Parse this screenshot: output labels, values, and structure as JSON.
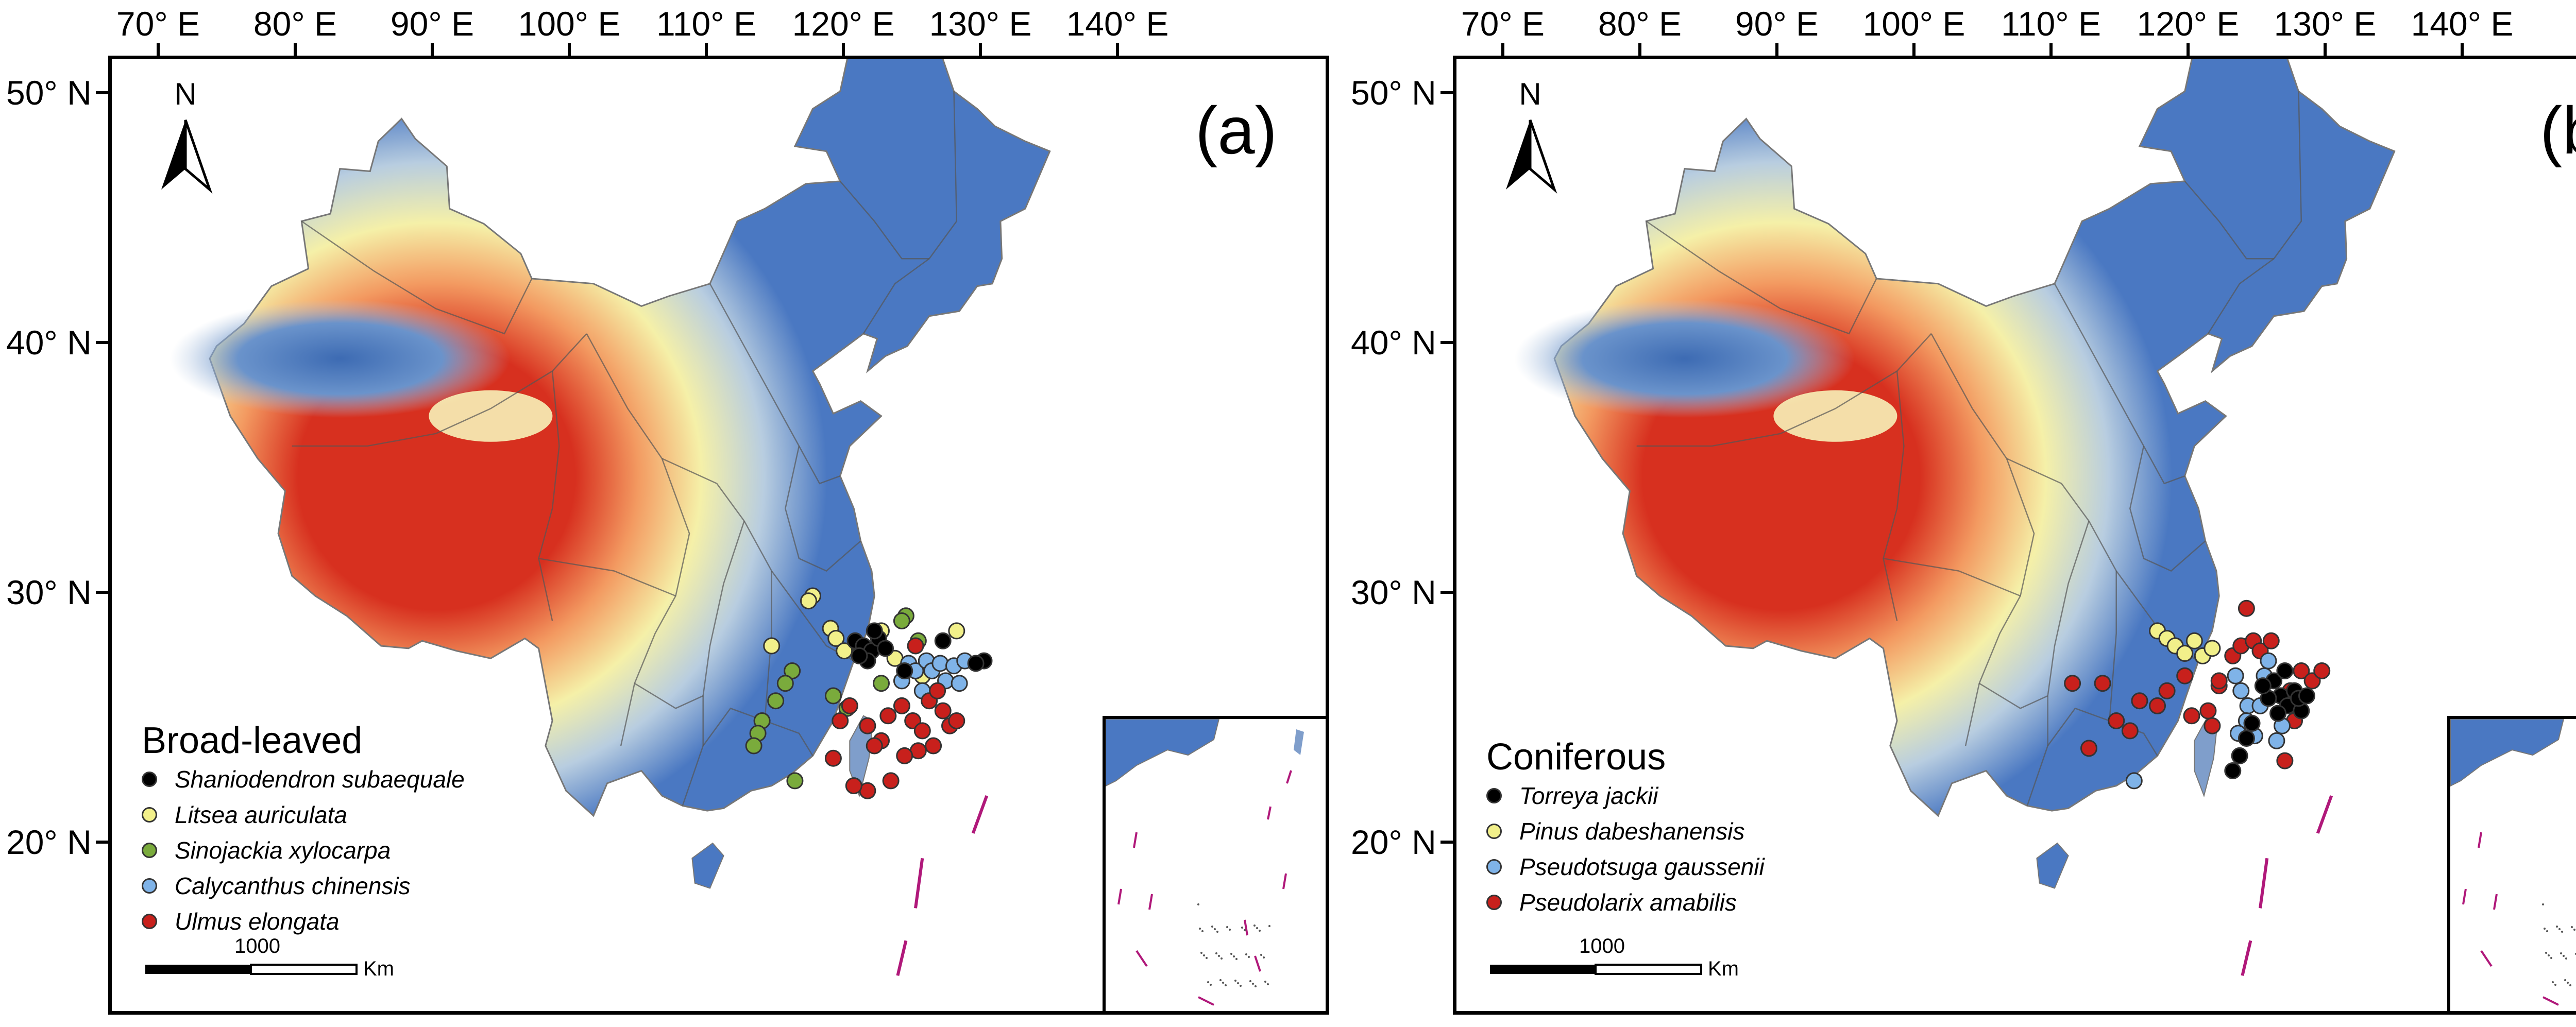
{
  "colors": {
    "low": "#4a78c2",
    "mid": "#f5f0a8",
    "high": "#d7301f",
    "border": "#555555",
    "dash": "#b0187a",
    "black": "#000000",
    "yellow": "#f2f08a",
    "green": "#7aab3c",
    "blue": "#7fb3e8",
    "red": "#c8201c"
  },
  "axes": {
    "lon_labels": [
      "70° E",
      "80° E",
      "90° E",
      "100° E",
      "110° E",
      "120° E",
      "130° E",
      "140° E"
    ],
    "lon_values": [
      70,
      80,
      90,
      100,
      110,
      120,
      130,
      140
    ],
    "lat_labels": [
      "50° N",
      "40° N",
      "30° N",
      "20° N"
    ],
    "lat_values": [
      50,
      40,
      30,
      20
    ]
  },
  "panels": [
    {
      "id": "a",
      "label": "(a)",
      "north": "N",
      "scale_number": "1000",
      "scale_unit": "Km",
      "legend_title": "Broad-leaved",
      "legend": [
        {
          "name": "Shaniodendron subaequale",
          "color": "#000000"
        },
        {
          "name": "Litsea auriculata",
          "color": "#f2f08a"
        },
        {
          "name": "Sinojackia xylocarpa",
          "color": "#7aab3c"
        },
        {
          "name": "Calycanthus chinensis",
          "color": "#7fb3e8"
        },
        {
          "name": "Ulmus elongata",
          "color": "#c8201c"
        }
      ],
      "points": [
        {
          "s": 1,
          "lon": 117.5,
          "lat": 30.0
        },
        {
          "s": 1,
          "lon": 117.2,
          "lat": 29.8
        },
        {
          "s": 1,
          "lon": 114.5,
          "lat": 28.0
        },
        {
          "s": 1,
          "lon": 118.8,
          "lat": 28.7
        },
        {
          "s": 1,
          "lon": 119.2,
          "lat": 28.3
        },
        {
          "s": 1,
          "lon": 119.8,
          "lat": 27.8
        },
        {
          "s": 1,
          "lon": 122.5,
          "lat": 28.6
        },
        {
          "s": 1,
          "lon": 121.0,
          "lat": 27.9
        },
        {
          "s": 1,
          "lon": 123.5,
          "lat": 27.5
        },
        {
          "s": 1,
          "lon": 125.5,
          "lat": 26.8
        },
        {
          "s": 1,
          "lon": 128.0,
          "lat": 28.6
        },
        {
          "s": 2,
          "lon": 124.3,
          "lat": 29.2
        },
        {
          "s": 2,
          "lon": 124.0,
          "lat": 29.0
        },
        {
          "s": 2,
          "lon": 125.2,
          "lat": 28.2
        },
        {
          "s": 2,
          "lon": 122.5,
          "lat": 26.5
        },
        {
          "s": 2,
          "lon": 119.0,
          "lat": 26.0
        },
        {
          "s": 2,
          "lon": 120.0,
          "lat": 25.5
        },
        {
          "s": 2,
          "lon": 116.0,
          "lat": 27.0
        },
        {
          "s": 2,
          "lon": 115.5,
          "lat": 26.5
        },
        {
          "s": 2,
          "lon": 114.8,
          "lat": 25.8
        },
        {
          "s": 2,
          "lon": 113.8,
          "lat": 25.0
        },
        {
          "s": 2,
          "lon": 113.5,
          "lat": 24.5
        },
        {
          "s": 2,
          "lon": 113.2,
          "lat": 24.0
        },
        {
          "s": 2,
          "lon": 116.2,
          "lat": 22.6
        },
        {
          "s": 3,
          "lon": 124.5,
          "lat": 27.3
        },
        {
          "s": 3,
          "lon": 125.0,
          "lat": 27.0
        },
        {
          "s": 3,
          "lon": 125.8,
          "lat": 27.4
        },
        {
          "s": 3,
          "lon": 126.2,
          "lat": 27.0
        },
        {
          "s": 3,
          "lon": 126.8,
          "lat": 27.3
        },
        {
          "s": 3,
          "lon": 127.2,
          "lat": 26.6
        },
        {
          "s": 3,
          "lon": 127.8,
          "lat": 27.2
        },
        {
          "s": 3,
          "lon": 128.2,
          "lat": 26.5
        },
        {
          "s": 3,
          "lon": 128.6,
          "lat": 27.4
        },
        {
          "s": 3,
          "lon": 124.0,
          "lat": 26.6
        },
        {
          "s": 3,
          "lon": 125.5,
          "lat": 26.2
        },
        {
          "s": 4,
          "lon": 119.5,
          "lat": 25.0
        },
        {
          "s": 4,
          "lon": 120.2,
          "lat": 25.6
        },
        {
          "s": 4,
          "lon": 121.5,
          "lat": 24.8
        },
        {
          "s": 4,
          "lon": 122.5,
          "lat": 24.2
        },
        {
          "s": 4,
          "lon": 123.0,
          "lat": 25.2
        },
        {
          "s": 4,
          "lon": 124.0,
          "lat": 25.6
        },
        {
          "s": 4,
          "lon": 124.8,
          "lat": 25.0
        },
        {
          "s": 4,
          "lon": 125.5,
          "lat": 24.6
        },
        {
          "s": 4,
          "lon": 126.0,
          "lat": 25.8
        },
        {
          "s": 4,
          "lon": 126.6,
          "lat": 26.2
        },
        {
          "s": 4,
          "lon": 127.0,
          "lat": 25.4
        },
        {
          "s": 4,
          "lon": 127.5,
          "lat": 24.8
        },
        {
          "s": 4,
          "lon": 126.3,
          "lat": 24.0
        },
        {
          "s": 4,
          "lon": 125.2,
          "lat": 23.8
        },
        {
          "s": 4,
          "lon": 124.2,
          "lat": 23.6
        },
        {
          "s": 4,
          "lon": 123.2,
          "lat": 22.6
        },
        {
          "s": 4,
          "lon": 121.5,
          "lat": 22.2
        },
        {
          "s": 4,
          "lon": 120.5,
          "lat": 22.4
        },
        {
          "s": 4,
          "lon": 119.0,
          "lat": 23.5
        },
        {
          "s": 4,
          "lon": 122.0,
          "lat": 24.0
        },
        {
          "s": 4,
          "lon": 125.0,
          "lat": 28.0
        },
        {
          "s": 4,
          "lon": 128.0,
          "lat": 25.0
        },
        {
          "s": 0,
          "lon": 120.6,
          "lat": 28.2
        },
        {
          "s": 0,
          "lon": 121.2,
          "lat": 28.0
        },
        {
          "s": 0,
          "lon": 121.8,
          "lat": 27.8
        },
        {
          "s": 0,
          "lon": 122.3,
          "lat": 28.3
        },
        {
          "s": 0,
          "lon": 121.5,
          "lat": 27.4
        },
        {
          "s": 0,
          "lon": 122.8,
          "lat": 27.9
        },
        {
          "s": 0,
          "lon": 120.9,
          "lat": 27.6
        },
        {
          "s": 0,
          "lon": 124.2,
          "lat": 27.0
        },
        {
          "s": 0,
          "lon": 127.0,
          "lat": 28.2
        },
        {
          "s": 0,
          "lon": 130.0,
          "lat": 27.4
        },
        {
          "s": 0,
          "lon": 129.4,
          "lat": 27.3
        },
        {
          "s": 0,
          "lon": 122.0,
          "lat": 28.6
        }
      ]
    },
    {
      "id": "b",
      "label": "(b)",
      "north": "N",
      "scale_number": "1000",
      "scale_unit": "Km",
      "legend_title": "Coniferous",
      "legend": [
        {
          "name": "Torreya jackii",
          "color": "#000000"
        },
        {
          "name": "Pinus dabeshanensis",
          "color": "#f2f08a"
        },
        {
          "name": "Pseudotsuga gaussenii",
          "color": "#7fb3e8"
        },
        {
          "name": "Pseudolarix amabilis",
          "color": "#c8201c"
        }
      ],
      "points": [
        {
          "s": 1,
          "lon": 117.5,
          "lat": 28.6
        },
        {
          "s": 1,
          "lon": 118.2,
          "lat": 28.3
        },
        {
          "s": 1,
          "lon": 118.8,
          "lat": 28.0
        },
        {
          "s": 1,
          "lon": 119.5,
          "lat": 27.7
        },
        {
          "s": 1,
          "lon": 120.2,
          "lat": 28.2
        },
        {
          "s": 1,
          "lon": 120.8,
          "lat": 27.6
        },
        {
          "s": 1,
          "lon": 121.5,
          "lat": 27.9
        },
        {
          "s": 3,
          "lon": 113.5,
          "lat": 26.5
        },
        {
          "s": 3,
          "lon": 114.5,
          "lat": 25.0
        },
        {
          "s": 3,
          "lon": 115.5,
          "lat": 24.6
        },
        {
          "s": 3,
          "lon": 116.2,
          "lat": 25.8
        },
        {
          "s": 3,
          "lon": 117.5,
          "lat": 25.6
        },
        {
          "s": 3,
          "lon": 118.2,
          "lat": 26.2
        },
        {
          "s": 3,
          "lon": 119.5,
          "lat": 26.8
        },
        {
          "s": 3,
          "lon": 120.0,
          "lat": 25.2
        },
        {
          "s": 3,
          "lon": 121.2,
          "lat": 25.4
        },
        {
          "s": 3,
          "lon": 122.0,
          "lat": 26.4
        },
        {
          "s": 3,
          "lon": 123.0,
          "lat": 27.6
        },
        {
          "s": 3,
          "lon": 123.6,
          "lat": 28.0
        },
        {
          "s": 3,
          "lon": 124.5,
          "lat": 28.2
        },
        {
          "s": 3,
          "lon": 125.0,
          "lat": 27.8
        },
        {
          "s": 3,
          "lon": 125.8,
          "lat": 28.2
        },
        {
          "s": 3,
          "lon": 124.0,
          "lat": 29.5
        },
        {
          "s": 3,
          "lon": 122.0,
          "lat": 26.6
        },
        {
          "s": 3,
          "lon": 121.5,
          "lat": 24.8
        },
        {
          "s": 3,
          "lon": 127.2,
          "lat": 26.2
        },
        {
          "s": 3,
          "lon": 128.0,
          "lat": 27.0
        },
        {
          "s": 3,
          "lon": 128.8,
          "lat": 26.6
        },
        {
          "s": 3,
          "lon": 129.5,
          "lat": 27.0
        },
        {
          "s": 3,
          "lon": 127.5,
          "lat": 25.0
        },
        {
          "s": 3,
          "lon": 126.8,
          "lat": 23.4
        },
        {
          "s": 3,
          "lon": 112.5,
          "lat": 23.9
        },
        {
          "s": 3,
          "lon": 111.3,
          "lat": 26.5
        },
        {
          "s": 2,
          "lon": 123.2,
          "lat": 26.8
        },
        {
          "s": 2,
          "lon": 123.6,
          "lat": 26.2
        },
        {
          "s": 2,
          "lon": 124.1,
          "lat": 25.6
        },
        {
          "s": 2,
          "lon": 124.0,
          "lat": 25.0
        },
        {
          "s": 2,
          "lon": 124.6,
          "lat": 24.4
        },
        {
          "s": 2,
          "lon": 125.0,
          "lat": 25.6
        },
        {
          "s": 2,
          "lon": 125.3,
          "lat": 26.8
        },
        {
          "s": 2,
          "lon": 125.6,
          "lat": 27.4
        },
        {
          "s": 2,
          "lon": 126.2,
          "lat": 24.2
        },
        {
          "s": 2,
          "lon": 126.6,
          "lat": 24.8
        },
        {
          "s": 2,
          "lon": 123.4,
          "lat": 24.5
        },
        {
          "s": 2,
          "lon": 115.8,
          "lat": 22.6
        },
        {
          "s": 0,
          "lon": 126.0,
          "lat": 26.6
        },
        {
          "s": 0,
          "lon": 126.5,
          "lat": 26.0
        },
        {
          "s": 0,
          "lon": 127.0,
          "lat": 25.6
        },
        {
          "s": 0,
          "lon": 127.5,
          "lat": 26.2
        },
        {
          "s": 0,
          "lon": 128.0,
          "lat": 25.4
        },
        {
          "s": 0,
          "lon": 126.3,
          "lat": 25.3
        },
        {
          "s": 0,
          "lon": 127.8,
          "lat": 25.9
        },
        {
          "s": 0,
          "lon": 126.8,
          "lat": 27.0
        },
        {
          "s": 0,
          "lon": 128.4,
          "lat": 26.0
        },
        {
          "s": 0,
          "lon": 125.6,
          "lat": 25.9
        },
        {
          "s": 0,
          "lon": 124.4,
          "lat": 24.9
        },
        {
          "s": 0,
          "lon": 124.0,
          "lat": 24.3
        },
        {
          "s": 0,
          "lon": 123.5,
          "lat": 23.6
        },
        {
          "s": 0,
          "lon": 123.0,
          "lat": 23.0
        },
        {
          "s": 0,
          "lon": 125.2,
          "lat": 26.4
        }
      ]
    }
  ]
}
